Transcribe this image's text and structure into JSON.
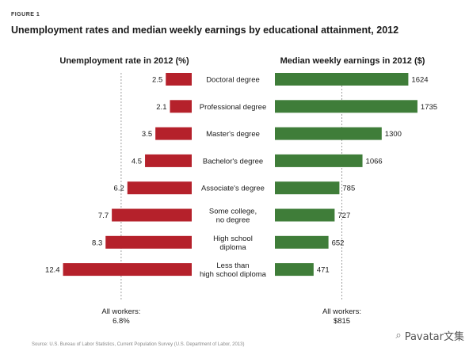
{
  "chart_data": {
    "type": "bar",
    "figure_label": "FIGURE 1",
    "title": "Unemployment rates and median weekly earnings by educational attainment, 2012",
    "categories": [
      [
        "Doctoral degree"
      ],
      [
        "Professional degree"
      ],
      [
        "Master's degree"
      ],
      [
        "Bachelor's degree"
      ],
      [
        "Associate's degree"
      ],
      [
        "Some college,",
        "no degree"
      ],
      [
        "High school",
        "diploma"
      ],
      [
        "Less than",
        "high school diploma"
      ]
    ],
    "series": [
      {
        "name": "Unemployment rate in 2012 (%)",
        "values": [
          2.5,
          2.1,
          3.5,
          4.5,
          6.2,
          7.7,
          8.3,
          12.4
        ],
        "color": "#b5212b",
        "reference": {
          "value": 6.8,
          "label": [
            "All workers:",
            "6.8%"
          ]
        }
      },
      {
        "name": "Median weekly earnings in 2012 ($)",
        "values": [
          1624,
          1735,
          1300,
          1066,
          785,
          727,
          652,
          471
        ],
        "color": "#3f7d39",
        "reference": {
          "value": 815,
          "label": [
            "All workers:",
            "$815"
          ]
        }
      }
    ],
    "grid": false,
    "source": "Source: U.S. Bureau of Labor Statistics, Current Population Survey (U.S. Department of Labor, 2013)"
  },
  "watermark": {
    "icon": "wechat-icon",
    "text": "Pavatar文集"
  }
}
